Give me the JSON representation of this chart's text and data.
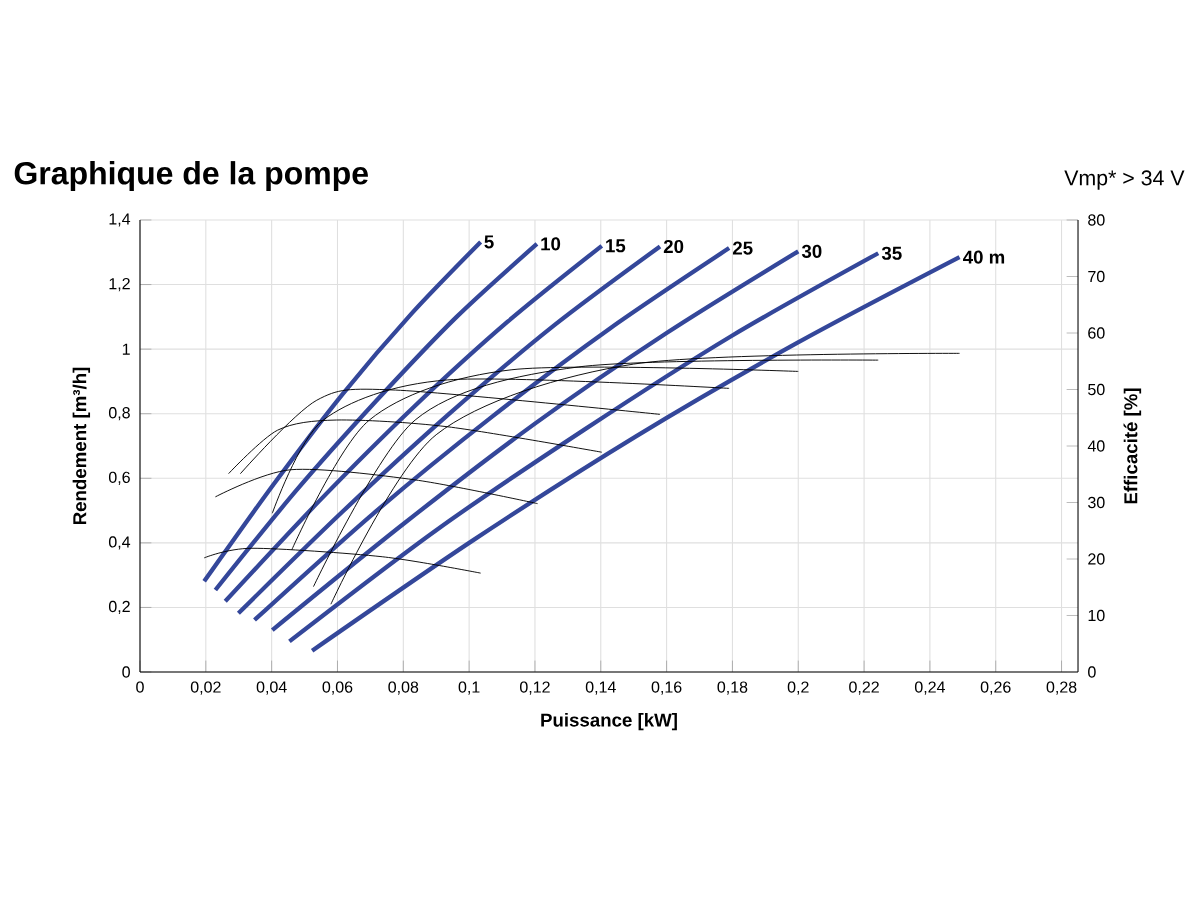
{
  "chart_data": {
    "type": "line",
    "title": "Graphique de la pompe",
    "xlabel": "Puissance [kW]",
    "ylabel": "Rendement [m³/h]",
    "y2label": "Efficacité [%]",
    "annotations": [
      "Vmp* > 34 V"
    ],
    "xlim": [
      0,
      0.285
    ],
    "ylim": [
      0,
      1.4
    ],
    "y2lim": [
      0,
      80
    ],
    "xticks": [
      0,
      {
        "value": 0.02,
        "label": "0,02"
      },
      {
        "value": 0.04,
        "label": "0,04"
      },
      {
        "value": 0.06,
        "label": "0,06"
      },
      {
        "value": 0.08,
        "label": "0,08"
      },
      {
        "value": 0.1,
        "label": "0,1"
      },
      {
        "value": 0.12,
        "label": "0,12"
      },
      {
        "value": 0.14,
        "label": "0,14"
      },
      {
        "value": 0.16,
        "label": "0,16"
      },
      {
        "value": 0.18,
        "label": "0,18"
      },
      {
        "value": 0.2,
        "label": "0,2"
      },
      {
        "value": 0.22,
        "label": "0,22"
      },
      {
        "value": 0.24,
        "label": "0,24"
      },
      {
        "value": 0.26,
        "label": "0,26"
      },
      {
        "value": 0.28,
        "label": "0,28"
      }
    ],
    "yticks": [
      0,
      {
        "value": 0.2,
        "label": "0,2"
      },
      {
        "value": 0.4,
        "label": "0,4"
      },
      {
        "value": 0.6,
        "label": "0,6"
      },
      {
        "value": 0.8,
        "label": "0,8"
      },
      1,
      {
        "value": 1.2,
        "label": "1,2"
      },
      {
        "value": 1.4,
        "label": "1,4"
      }
    ],
    "y2ticks": [
      0,
      10,
      20,
      30,
      40,
      50,
      60,
      70,
      80
    ],
    "grid": true,
    "series": [
      {
        "name": "5",
        "color": "#34479a",
        "x": [
          0.0195,
          0.0405,
          0.0615,
          0.0825,
          0.1035
        ],
        "values": [
          0.281,
          0.58,
          0.86,
          1.11,
          1.332
        ]
      },
      {
        "name": "10",
        "color": "#34479a",
        "x": [
          0.0229,
          0.0473,
          0.0718,
          0.0962,
          0.1206
        ],
        "values": [
          0.254,
          0.56,
          0.84,
          1.1,
          1.326
        ]
      },
      {
        "name": "15",
        "color": "#34479a",
        "x": [
          0.0259,
          0.0545,
          0.0831,
          0.1117,
          0.1403
        ],
        "values": [
          0.219,
          0.53,
          0.82,
          1.085,
          1.32
        ]
      },
      {
        "name": "20",
        "color": "#34479a",
        "x": [
          0.0299,
          0.0619,
          0.094,
          0.126,
          0.158
        ],
        "values": [
          0.182,
          0.5,
          0.8,
          1.075,
          1.318
        ]
      },
      {
        "name": "25",
        "color": "#34479a",
        "x": [
          0.0348,
          0.0708,
          0.1069,
          0.1429,
          0.179
        ],
        "values": [
          0.161,
          0.49,
          0.79,
          1.065,
          1.313
        ]
      },
      {
        "name": "30",
        "color": "#34479a",
        "x": [
          0.0402,
          0.0802,
          0.1201,
          0.16,
          0.2
        ],
        "values": [
          0.13,
          0.46,
          0.77,
          1.05,
          1.303
        ]
      },
      {
        "name": "35",
        "color": "#34479a",
        "x": [
          0.0454,
          0.0901,
          0.1349,
          0.1796,
          0.2243
        ],
        "values": [
          0.095,
          0.44,
          0.75,
          1.04,
          1.297
        ]
      },
      {
        "name": "40 m",
        "color": "#34479a",
        "x": [
          0.0523,
          0.1015,
          0.1507,
          0.1998,
          0.249
        ],
        "values": [
          0.066,
          0.41,
          0.73,
          1.02,
          1.285
        ]
      },
      {
        "color": "#000000",
        "axis": "y2",
        "x": [
          0.0195,
          0.034,
          0.0736,
          0.1035
        ],
        "values": [
          20.2,
          21.9,
          20.4,
          17.5
        ]
      },
      {
        "color": "#000000",
        "axis": "y2",
        "x": [
          0.0229,
          0.0458,
          0.0836,
          0.1208
        ],
        "values": [
          31.0,
          35.8,
          34.0,
          29.8
        ]
      },
      {
        "color": "#000000",
        "axis": "y2",
        "x": [
          0.0269,
          0.0418,
          0.0597,
          0.0935,
          0.1403
        ],
        "values": [
          35.1,
          42.8,
          44.6,
          43.4,
          38.9
        ]
      },
      {
        "color": "#000000",
        "axis": "y2",
        "x": [
          0.0305,
          0.0537,
          0.0776,
          0.158
        ],
        "values": [
          35.1,
          48.1,
          49.9,
          45.6
        ]
      },
      {
        "color": "#000000",
        "axis": "y2",
        "x": [
          0.0402,
          0.0557,
          0.0935,
          0.179
        ],
        "values": [
          28.1,
          44.6,
          51.7,
          50.2
        ]
      },
      {
        "color": "#000000",
        "axis": "y2",
        "x": [
          0.0461,
          0.0697,
          0.113,
          0.2
        ],
        "values": [
          21.6,
          44.6,
          53.5,
          53.2
        ]
      },
      {
        "color": "#000000",
        "axis": "y2",
        "x": [
          0.0527,
          0.0836,
          0.1333,
          0.2243
        ],
        "values": [
          15.1,
          44.6,
          54.0,
          55.2
        ]
      },
      {
        "color": "#000000",
        "axis": "y2",
        "x": [
          0.058,
          0.09,
          0.15,
          0.249
        ],
        "values": [
          12.0,
          42.0,
          54.5,
          56.4
        ]
      }
    ]
  }
}
